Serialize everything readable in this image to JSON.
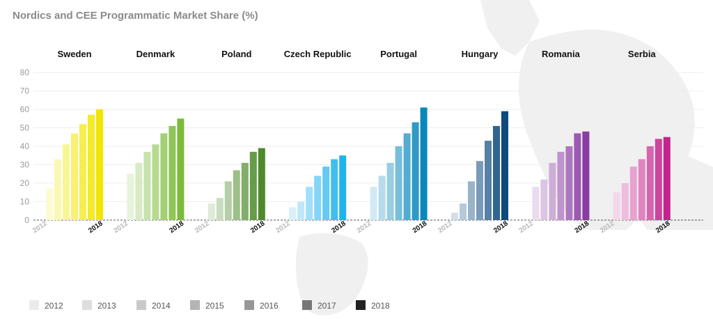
{
  "chart_data": {
    "type": "bar",
    "title": "Nordics and CEE Programmatic Market Share (%)",
    "ylim": [
      0,
      80
    ],
    "yticks": [
      0,
      10,
      20,
      30,
      40,
      50,
      60,
      70,
      80
    ],
    "grid": true,
    "legend_position": "bottom-left",
    "years": [
      "2012",
      "2013",
      "2014",
      "2015",
      "2016",
      "2017",
      "2018"
    ],
    "legend_colors": [
      "#ebebeb",
      "#dedede",
      "#c9c9c9",
      "#b4b4b4",
      "#979797",
      "#777777",
      "#222222"
    ],
    "groups": [
      {
        "name": "Sweden",
        "color": "#f2e600",
        "values": [
          17,
          33,
          41,
          47,
          52,
          57,
          60
        ],
        "first_label": "2012",
        "last_label": "2018"
      },
      {
        "name": "Denmark",
        "color": "#7cbb3a",
        "values": [
          25,
          31,
          37,
          41,
          47,
          51,
          55
        ],
        "first_label": "2012",
        "last_label": "2018"
      },
      {
        "name": "Poland",
        "color": "#4c8a2a",
        "values": [
          9,
          12,
          21,
          27,
          31,
          37,
          39
        ],
        "first_label": "2012",
        "last_label": "2018"
      },
      {
        "name": "Czech Republic",
        "color": "#1fb3ee",
        "values": [
          7,
          10,
          18,
          24,
          29,
          33,
          35
        ],
        "first_label": "2012",
        "last_label": "2018"
      },
      {
        "name": "Portugal",
        "color": "#0a88bb",
        "values": [
          18,
          24,
          31,
          40,
          47,
          53,
          61
        ],
        "first_label": "2012",
        "last_label": "2018"
      },
      {
        "name": "Hungary",
        "color": "#0d4a7e",
        "values": [
          4,
          9,
          21,
          32,
          43,
          51,
          59
        ],
        "first_label": "2012",
        "last_label": "2018"
      },
      {
        "name": "Romania",
        "color": "#8a3ca3",
        "values": [
          18,
          22,
          31,
          37,
          40,
          47,
          48
        ],
        "first_label": "2012",
        "last_label": "2018"
      },
      {
        "name": "Serbia",
        "color": "#c4238d",
        "values": [
          15,
          20,
          29,
          33,
          40,
          44,
          45
        ],
        "first_label": "2012",
        "last_label": "2018"
      }
    ]
  }
}
